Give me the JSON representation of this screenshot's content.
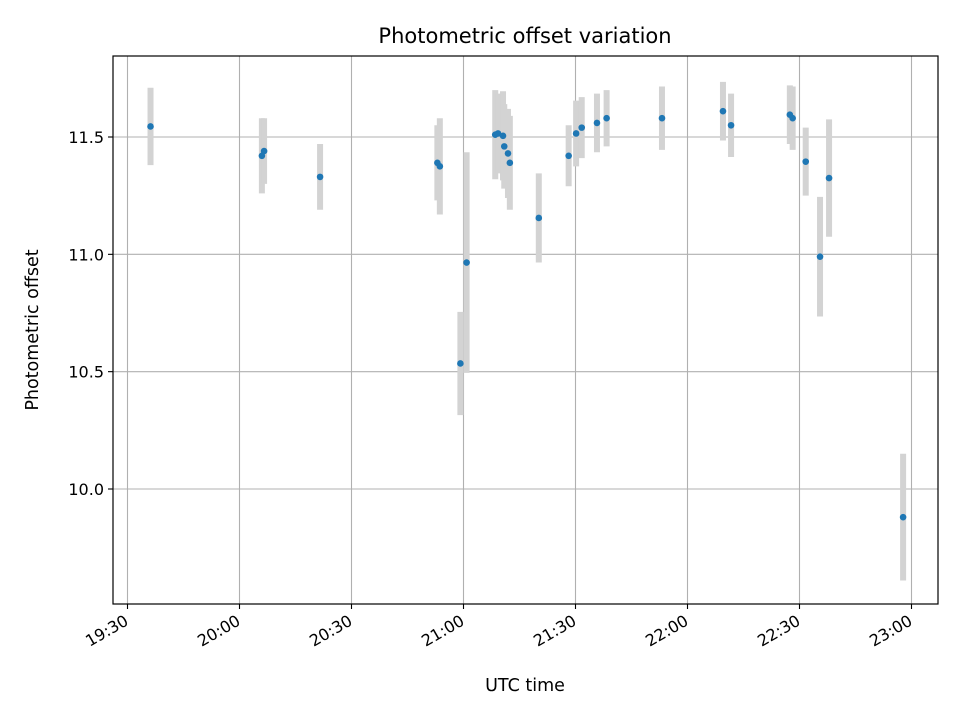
{
  "chart_data": {
    "type": "scatter",
    "title": "Photometric offset variation",
    "xlabel": "UTC time",
    "ylabel": "Photometric offset",
    "x_ticks": [
      "19:30",
      "20:00",
      "20:30",
      "21:00",
      "21:30",
      "22:00",
      "22:30",
      "23:00"
    ],
    "y_ticks": [
      "10.0",
      "10.5",
      "11.0",
      "11.5"
    ],
    "xlim": [
      "19:30",
      "23:00"
    ],
    "ylim": [
      9.52,
      11.85
    ],
    "grid": true,
    "errorbar_color": "#d3d3d3",
    "marker_color": "#1f77b4",
    "points": [
      {
        "t": "19:36:10",
        "y": 11.545,
        "err": 0.165
      },
      {
        "t": "20:06:00",
        "y": 11.42,
        "err": 0.16
      },
      {
        "t": "20:06:35",
        "y": 11.44,
        "err": 0.14
      },
      {
        "t": "20:21:35",
        "y": 11.33,
        "err": 0.14
      },
      {
        "t": "20:53:00",
        "y": 11.39,
        "err": 0.16
      },
      {
        "t": "20:53:40",
        "y": 11.375,
        "err": 0.205
      },
      {
        "t": "20:59:10",
        "y": 10.535,
        "err": 0.22
      },
      {
        "t": "21:00:50",
        "y": 10.965,
        "err": 0.47
      },
      {
        "t": "21:08:30",
        "y": 11.51,
        "err": 0.19
      },
      {
        "t": "21:09:15",
        "y": 11.515,
        "err": 0.17
      },
      {
        "t": "21:10:35",
        "y": 11.505,
        "err": 0.19
      },
      {
        "t": "21:10:55",
        "y": 11.46,
        "err": 0.18
      },
      {
        "t": "21:11:55",
        "y": 11.43,
        "err": 0.19
      },
      {
        "t": "21:12:25",
        "y": 11.39,
        "err": 0.2
      },
      {
        "t": "21:20:10",
        "y": 11.155,
        "err": 0.19
      },
      {
        "t": "21:28:10",
        "y": 11.42,
        "err": 0.13
      },
      {
        "t": "21:30:10",
        "y": 11.515,
        "err": 0.14
      },
      {
        "t": "21:31:40",
        "y": 11.54,
        "err": 0.13
      },
      {
        "t": "21:35:45",
        "y": 11.56,
        "err": 0.125
      },
      {
        "t": "21:38:20",
        "y": 11.58,
        "err": 0.12
      },
      {
        "t": "21:53:10",
        "y": 11.58,
        "err": 0.135
      },
      {
        "t": "22:09:30",
        "y": 11.61,
        "err": 0.125
      },
      {
        "t": "22:11:40",
        "y": 11.55,
        "err": 0.135
      },
      {
        "t": "22:27:25",
        "y": 11.595,
        "err": 0.125
      },
      {
        "t": "22:28:10",
        "y": 11.58,
        "err": 0.135
      },
      {
        "t": "22:31:40",
        "y": 11.395,
        "err": 0.145
      },
      {
        "t": "22:35:30",
        "y": 10.99,
        "err": 0.255
      },
      {
        "t": "22:37:55",
        "y": 11.325,
        "err": 0.25
      },
      {
        "t": "22:57:45",
        "y": 9.88,
        "err": 0.27
      }
    ]
  }
}
